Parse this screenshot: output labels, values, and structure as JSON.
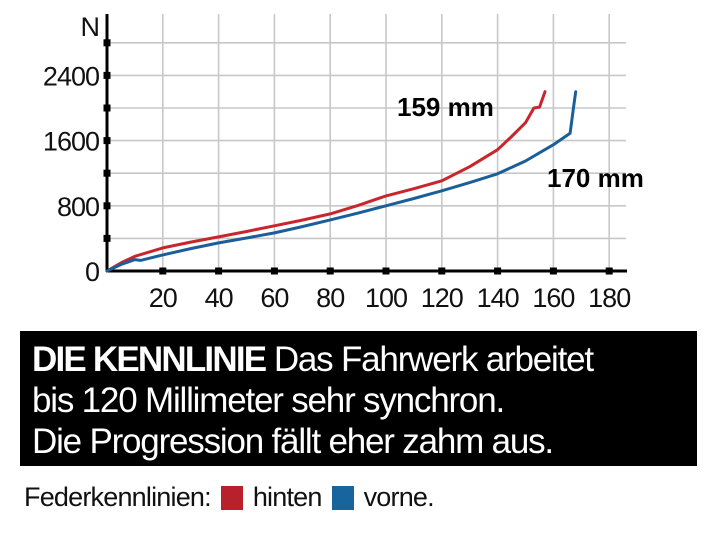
{
  "chart_data": {
    "type": "line",
    "title": "",
    "xlabel": "",
    "ylabel": "N",
    "xlim": [
      0,
      185
    ],
    "ylim": [
      0,
      2900
    ],
    "grid": true,
    "x_ticks": [
      20,
      40,
      60,
      80,
      100,
      120,
      140,
      160,
      180
    ],
    "y_ticks_labeled": [
      0,
      800,
      1600,
      2400
    ],
    "y_ticks_minor": [
      400,
      1200,
      2000,
      2800
    ],
    "series": [
      {
        "name": "hinten",
        "color": "#c8262c",
        "end_label": "159 mm",
        "x": [
          0,
          5,
          10,
          20,
          30,
          40,
          50,
          60,
          70,
          80,
          90,
          100,
          110,
          120,
          130,
          140,
          145,
          150,
          153,
          155,
          157
        ],
        "y": [
          0,
          100,
          180,
          283,
          355,
          418,
          485,
          554,
          625,
          700,
          805,
          922,
          1010,
          1107,
          1280,
          1488,
          1650,
          1820,
          2000,
          2010,
          2200
        ]
      },
      {
        "name": "vorne",
        "color": "#1b5e99",
        "end_label": "170 mm",
        "x": [
          0,
          5,
          10,
          12,
          20,
          30,
          40,
          50,
          60,
          70,
          80,
          90,
          100,
          110,
          120,
          130,
          140,
          150,
          160,
          166,
          167,
          168
        ],
        "y": [
          0,
          80,
          140,
          130,
          197,
          275,
          345,
          405,
          467,
          545,
          627,
          710,
          800,
          890,
          984,
          1085,
          1193,
          1350,
          1550,
          1690,
          1950,
          2200
        ]
      }
    ]
  },
  "axis": {
    "y_unit": "N",
    "y_labels": [
      "2400",
      "1600",
      "800",
      "0"
    ],
    "x_labels": [
      "20",
      "40",
      "60",
      "80",
      "100",
      "120",
      "140",
      "160",
      "180"
    ]
  },
  "labels": {
    "rear_travel": "159 mm",
    "front_travel": "170 mm"
  },
  "caption": {
    "lead": "DIE KENNLINIE",
    "line1_rest": " Das Fahrwerk arbeitet",
    "line2": "bis 120 Millimeter sehr synchron.",
    "line3": "Die Progression fällt eher zahm aus."
  },
  "legend": {
    "prefix": "Federkennlinien:",
    "items": [
      {
        "label": "hinten",
        "color": "#b8212b"
      },
      {
        "label": "vorne.",
        "color": "#17659c"
      }
    ]
  }
}
